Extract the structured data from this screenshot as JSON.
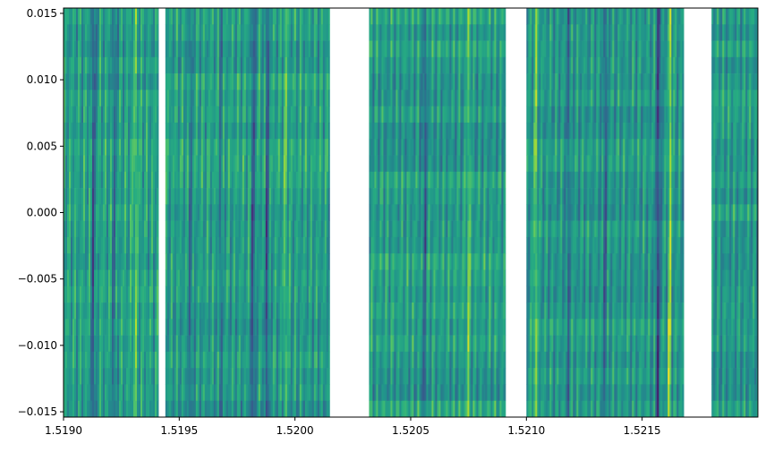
{
  "chart_data": {
    "type": "heatmap",
    "title": "",
    "xlabel": "",
    "ylabel": "",
    "xlim": [
      1.519,
      1.522
    ],
    "ylim": [
      -0.0154,
      0.0154
    ],
    "x_ticks": [
      "1.5190",
      "1.5195",
      "1.5200",
      "1.5205",
      "1.5210",
      "1.5215"
    ],
    "x_tick_values": [
      1.519,
      1.5195,
      1.52,
      1.5205,
      1.521,
      1.5215
    ],
    "y_ticks": [
      "−0.015",
      "−0.010",
      "−0.005",
      "0.000",
      "0.005",
      "0.010",
      "0.015"
    ],
    "y_tick_values": [
      -0.015,
      -0.01,
      -0.005,
      0.0,
      0.005,
      0.01,
      0.015
    ],
    "colormap": "viridis",
    "rows": 25,
    "segments": [
      {
        "x_start": 1.519,
        "x_end": 1.51941
      },
      {
        "x_start": 1.51944,
        "x_end": 1.52015
      },
      {
        "x_start": 1.52032,
        "x_end": 1.52091
      },
      {
        "x_start": 1.521,
        "x_end": 1.52168
      },
      {
        "x_start": 1.5218,
        "x_end": 1.522
      }
    ],
    "gaps": [
      {
        "x_start": 1.51941,
        "x_end": 1.51944
      },
      {
        "x_start": 1.52015,
        "x_end": 1.52032
      },
      {
        "x_start": 1.52091,
        "x_end": 1.521
      },
      {
        "x_start": 1.52168,
        "x_end": 1.5218
      }
    ],
    "features": [
      {
        "x": 1.51913,
        "slope": 0.011,
        "strength": -0.8,
        "width": 9e-06
      },
      {
        "x": 1.51922,
        "slope": 0.011,
        "strength": -0.6,
        "width": 8e-06
      },
      {
        "x": 1.51931,
        "slope": 0.011,
        "strength": 0.4,
        "width": 1e-05
      },
      {
        "x": 1.51955,
        "slope": 0.006,
        "strength": -0.5,
        "width": 8e-06
      },
      {
        "x": 1.51968,
        "slope": 0.006,
        "strength": -0.4,
        "width": 8e-06
      },
      {
        "x": 1.51982,
        "slope": 0.012,
        "strength": -0.9,
        "width": 8e-06
      },
      {
        "x": 1.51988,
        "slope": 0.012,
        "strength": -0.8,
        "width": 8e-06
      },
      {
        "x": 1.51996,
        "slope": 0.008,
        "strength": 0.4,
        "width": 9e-06
      },
      {
        "x": 1.52056,
        "slope": 0.01,
        "strength": -0.6,
        "width": 9e-06
      },
      {
        "x": 1.52075,
        "slope": 0.012,
        "strength": 0.5,
        "width": 9e-06
      },
      {
        "x": 1.52104,
        "slope": 0.014,
        "strength": 0.6,
        "width": 1e-05
      },
      {
        "x": 1.52118,
        "slope": 0.012,
        "strength": -0.5,
        "width": 8e-06
      },
      {
        "x": 1.52134,
        "slope": 0.01,
        "strength": -0.6,
        "width": 8e-06
      },
      {
        "x": 1.52157,
        "slope": 0.02,
        "strength": -1.0,
        "width": 8e-06
      },
      {
        "x": 1.52162,
        "slope": 0.02,
        "strength": 1.0,
        "width": 6e-06
      }
    ],
    "grid": false,
    "legend": "none"
  }
}
